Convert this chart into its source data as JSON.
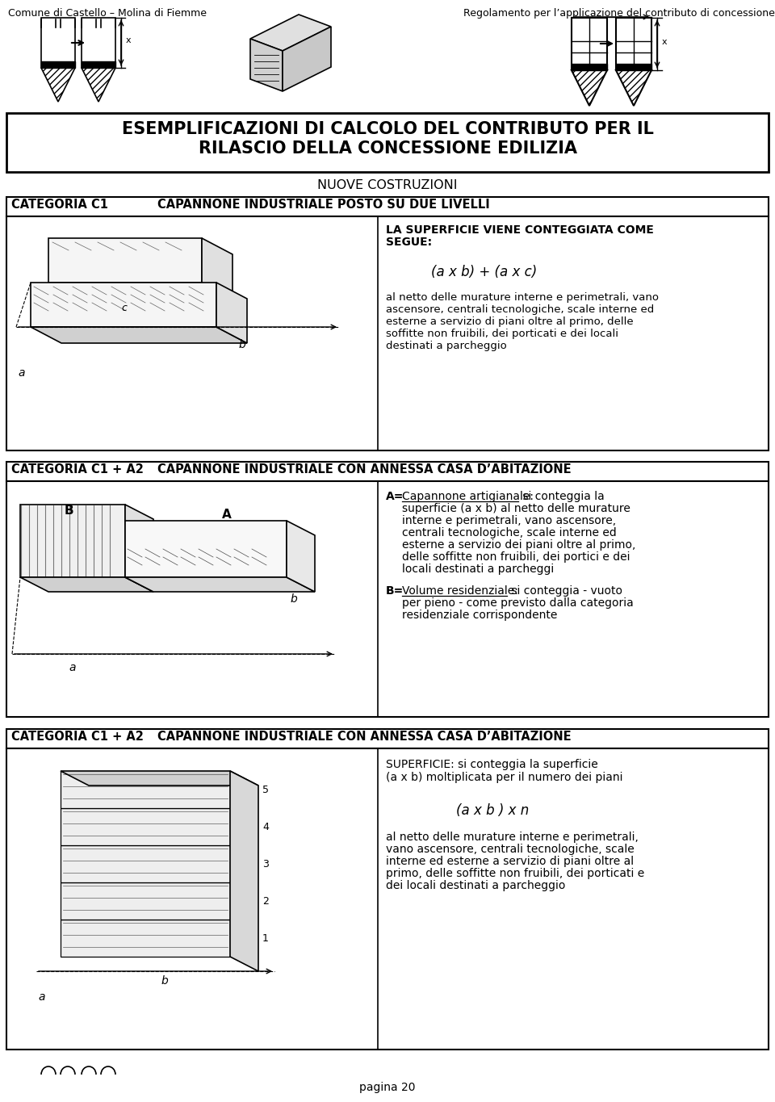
{
  "header_left": "Comune di Castello – Molina di Fiemme",
  "header_right": "Regolamento per l’applicazione del contributo di concessione",
  "main_title_line1": "ESEMPLIFICAZIONI DI CALCOLO DEL CONTRIBUTO PER IL",
  "main_title_line2": "RILASCIO DELLA CONCESSIONE EDILIZIA",
  "subtitle": "NUOVE COSTRUZIONI",
  "section1_label": "CATEGORIA C1",
  "section1_title": "CAPANNONE INDUSTRIALE POSTO SU DUE LIVELLI",
  "section1_text_title1": "LA SUPERFICIE VIENE CONTEGGIATA COME",
  "section1_text_title2": "SEGUE:",
  "section1_formula": "(a x b) + (a x c)",
  "section1_text1": "al netto delle murature interne e perimetrali, vano",
  "section1_text2": "ascensore, centrali tecnologiche, scale interne ed",
  "section1_text3": "esterne a servizio di piani oltre al primo, delle",
  "section1_text4": "soffitte non fruibili, dei porticati e dei locali",
  "section1_text5": "destinati a parcheggio",
  "section2_label": "CATEGORIA C1 + A2",
  "section2_title": "CAPANNONE INDUSTRIALE CON ANNESSA CASA D’ABITAZIONE",
  "section2_textA_label": "A=",
  "section2_textA_underline": "Capannone artigianale:",
  "section2_textA_rest": " si conteggia la",
  "section2_textA_2": "superficie (a x b) al netto delle murature",
  "section2_textA_3": "interne e perimetrali, vano ascensore,",
  "section2_textA_4": "centrali tecnologiche, scale interne ed",
  "section2_textA_5": "esterne a servizio dei piani oltre al primo,",
  "section2_textA_6": "delle soffitte non fruibili, dei portici e dei",
  "section2_textA_7": "locali destinati a parcheggi",
  "section2_textB_label": "B=",
  "section2_textB_underline": "Volume residenziale:",
  "section2_textB_rest": " si conteggia - vuoto",
  "section2_textB_2": "per pieno - come previsto dalla categoria",
  "section2_textB_3": "residenziale corrispondente",
  "section3_label": "CATEGORIA C1 + A2",
  "section3_title": "CAPANNONE INDUSTRIALE CON ANNESSA CASA D’ABITAZIONE",
  "section3_text_title1": "SUPERFICIE: si conteggia la superficie",
  "section3_text_title2": "(a x b) moltiplicata per il numero dei piani",
  "section3_formula": "(a x b ) x n",
  "section3_text1": "al netto delle murature interne e perimetrali,",
  "section3_text2": "vano ascensore, centrali tecnologiche, scale",
  "section3_text3": "interne ed esterne a servizio di piani oltre al",
  "section3_text4": "primo, delle soffitte non fruibili, dei porticati e",
  "section3_text5": "dei locali destinati a parcheggio",
  "footer": "pagina 20",
  "bg_color": "#ffffff",
  "text_color": "#000000"
}
